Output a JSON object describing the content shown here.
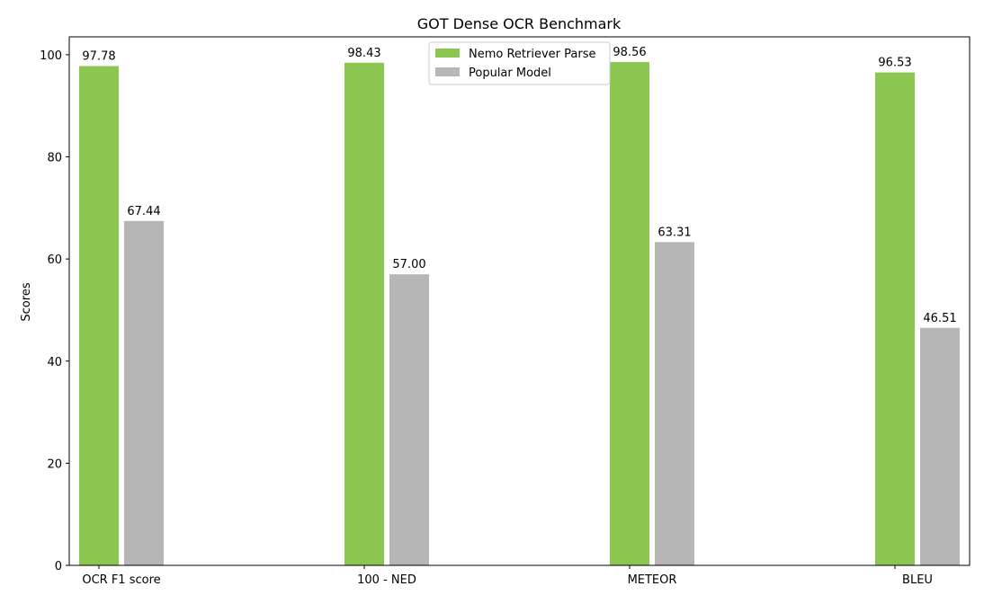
{
  "chart_data": {
    "type": "bar",
    "title": "GOT Dense OCR Benchmark",
    "xlabel": "",
    "ylabel": "Scores",
    "ylim": [
      0,
      103.5
    ],
    "yticks": [
      0,
      20,
      40,
      60,
      80,
      100
    ],
    "ytick_labels": [
      "0",
      "20",
      "40",
      "60",
      "80",
      "100"
    ],
    "categories": [
      "OCR F1 score",
      "100 - NED",
      "METEOR",
      "BLEU"
    ],
    "series": [
      {
        "name": "Nemo Retriever Parse",
        "color": "#8bc750",
        "values": [
          97.78,
          98.43,
          98.56,
          96.53
        ],
        "labels": [
          "97.78",
          "98.43",
          "98.56",
          "96.53"
        ]
      },
      {
        "name": "Popular Model",
        "color": "#b6b6b6",
        "values": [
          67.44,
          57.0,
          63.31,
          46.51
        ],
        "labels": [
          "67.44",
          "57.00",
          "63.31",
          "46.51"
        ]
      }
    ],
    "legend_position": "top-center",
    "grid": false
  }
}
